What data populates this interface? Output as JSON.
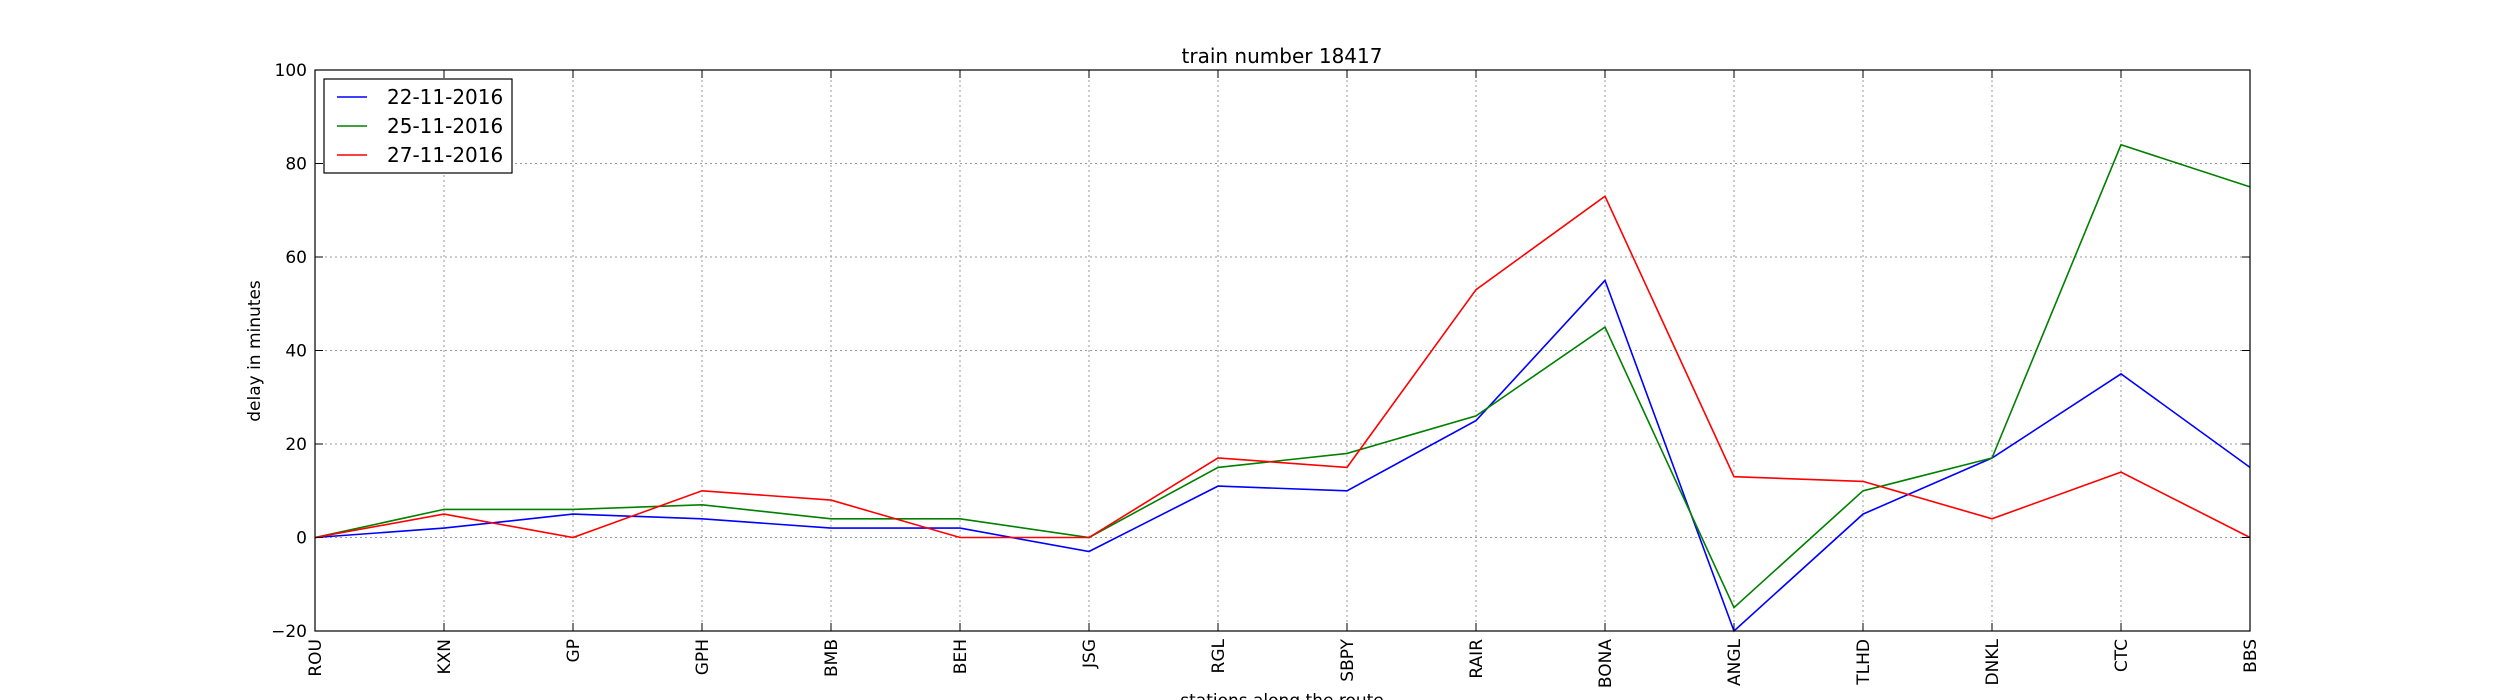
{
  "chart_data": {
    "type": "line",
    "title": "train number 18417",
    "xlabel": "stations along the route",
    "ylabel": "delay in minutes",
    "categories": [
      "ROU",
      "KXN",
      "GP",
      "GPH",
      "BMB",
      "BEH",
      "JSG",
      "RGL",
      "SBPY",
      "RAIR",
      "BONA",
      "ANGL",
      "TLHD",
      "DNKL",
      "CTC",
      "BBS"
    ],
    "yticks": [
      "−20",
      "0",
      "20",
      "40",
      "60",
      "80",
      "100"
    ],
    "ylim": [
      -20,
      100
    ],
    "grid": true,
    "legend_position": "top-left",
    "series": [
      {
        "name": "22-11-2016",
        "color": "#0000ff",
        "values": [
          0,
          2,
          5,
          4,
          2,
          2,
          -3,
          11,
          10,
          25,
          55,
          -20,
          5,
          17,
          35,
          15
        ]
      },
      {
        "name": "25-11-2016",
        "color": "#008000",
        "values": [
          0,
          6,
          6,
          7,
          4,
          4,
          0,
          15,
          18,
          26,
          45,
          -15,
          10,
          17,
          84,
          75
        ]
      },
      {
        "name": "27-11-2016",
        "color": "#ff0000",
        "values": [
          0,
          5,
          0,
          10,
          8,
          0,
          0,
          17,
          15,
          53,
          73,
          13,
          12,
          4,
          14,
          0
        ]
      }
    ]
  }
}
